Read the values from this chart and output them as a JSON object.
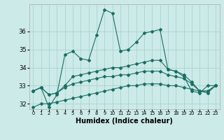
{
  "xlabel": "Humidex (Indice chaleur)",
  "bg_color": "#cceae8",
  "grid_color": "#aad4d0",
  "line_color": "#1a6e64",
  "x_values": [
    0,
    1,
    2,
    3,
    4,
    5,
    6,
    7,
    8,
    9,
    10,
    11,
    12,
    13,
    14,
    15,
    16,
    17,
    18,
    19,
    20,
    21,
    22,
    23
  ],
  "series1": [
    32.7,
    32.9,
    31.8,
    32.5,
    34.7,
    34.9,
    34.5,
    34.4,
    35.8,
    37.2,
    37.0,
    34.9,
    35.0,
    35.4,
    35.9,
    36.0,
    36.1,
    33.9,
    33.8,
    33.5,
    32.7,
    32.6,
    33.0,
    33.0
  ],
  "series2": [
    32.7,
    32.9,
    32.5,
    32.6,
    33.0,
    33.5,
    33.6,
    33.7,
    33.8,
    33.9,
    34.0,
    34.0,
    34.1,
    34.2,
    34.3,
    34.4,
    34.4,
    33.9,
    33.8,
    33.6,
    33.2,
    32.7,
    32.7,
    33.0
  ],
  "series3": [
    32.7,
    32.9,
    32.5,
    32.6,
    32.9,
    33.1,
    33.2,
    33.3,
    33.4,
    33.5,
    33.5,
    33.6,
    33.6,
    33.7,
    33.8,
    33.8,
    33.8,
    33.6,
    33.5,
    33.4,
    33.1,
    32.7,
    32.7,
    33.0
  ],
  "series4": [
    31.8,
    32.0,
    32.0,
    32.1,
    32.2,
    32.3,
    32.4,
    32.5,
    32.6,
    32.7,
    32.8,
    32.9,
    33.0,
    33.0,
    33.1,
    33.1,
    33.1,
    33.0,
    33.0,
    32.9,
    32.8,
    32.7,
    32.6,
    33.0
  ],
  "ylim": [
    31.7,
    37.5
  ],
  "yticks": [
    32,
    33,
    34,
    35,
    36
  ],
  "xlim": [
    -0.5,
    23.5
  ]
}
